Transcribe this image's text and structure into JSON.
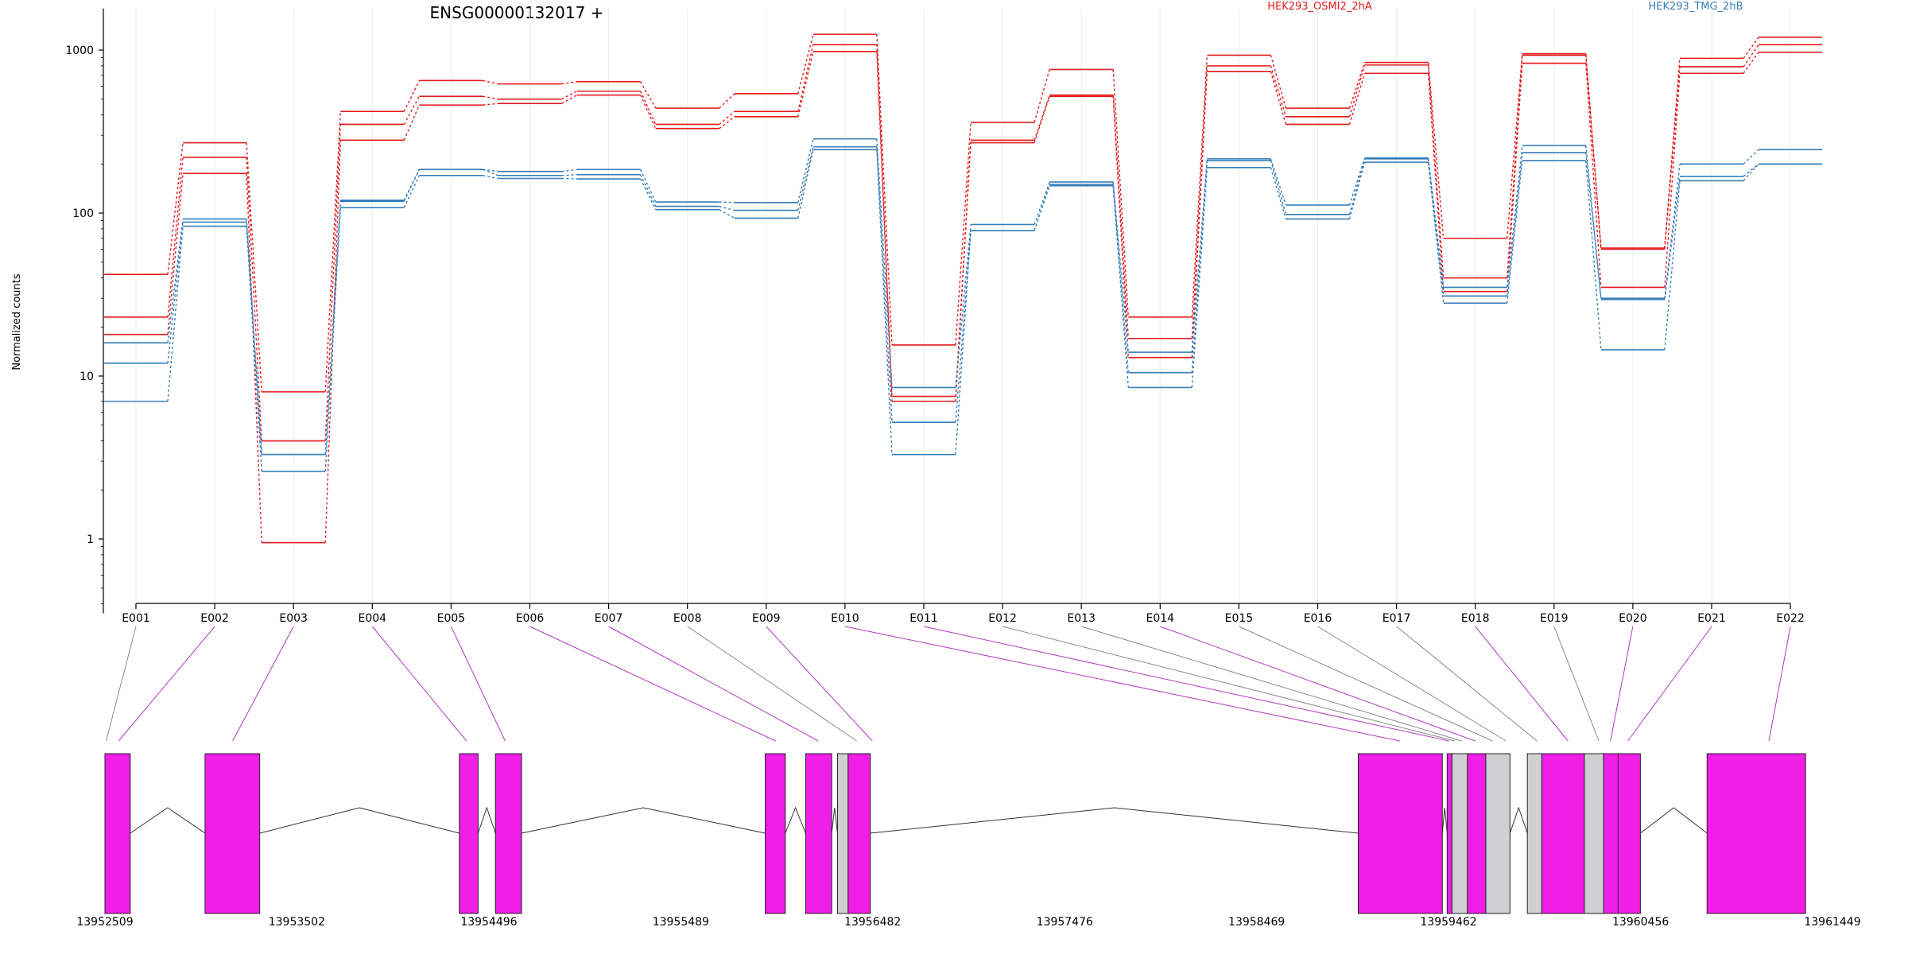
{
  "chart_data": {
    "type": "line",
    "title": "ENSG00000132017 +",
    "xlabel": "",
    "ylabel": "Normalized counts",
    "yscale": "log",
    "ylim": [
      0.35,
      1800
    ],
    "y_ticks": [
      1,
      10,
      100,
      1000
    ],
    "y_tick_labels": [
      "1",
      "10",
      "100",
      "1000"
    ],
    "grid": "vertical",
    "legend_placement": "top",
    "categories": [
      "E001",
      "E002",
      "E003",
      "E004",
      "E005",
      "E006",
      "E007",
      "E008",
      "E009",
      "E010",
      "E011",
      "E012",
      "E013",
      "E014",
      "E015",
      "E016",
      "E017",
      "E018",
      "E019",
      "E020",
      "E021",
      "E022"
    ],
    "conditions": [
      {
        "name": "HEK293_OSMI2_2hA",
        "color": "#e41a1c"
      },
      {
        "name": "HEK293_TMG_2hB",
        "color": "#377eb8"
      }
    ],
    "series": [
      {
        "condition": 0,
        "values": [
          42,
          270,
          8,
          420,
          650,
          620,
          640,
          440,
          540,
          1250,
          15.5,
          360,
          760,
          23,
          930,
          440,
          840,
          70,
          950,
          61,
          890,
          1200
        ]
      },
      {
        "condition": 0,
        "values": [
          23,
          220,
          4,
          350,
          520,
          500,
          560,
          350,
          420,
          1080,
          7.5,
          280,
          530,
          17,
          800,
          390,
          810,
          40,
          930,
          60,
          790,
          1080
        ]
      },
      {
        "condition": 0,
        "values": [
          18,
          175,
          0.95,
          280,
          460,
          470,
          530,
          330,
          390,
          980,
          7,
          270,
          520,
          13,
          740,
          350,
          720,
          33,
          830,
          35,
          720,
          970
        ]
      },
      {
        "condition": 1,
        "values": [
          16,
          92,
          3.3,
          120,
          185,
          180,
          185,
          117,
          116,
          285,
          8.5,
          85,
          155,
          14,
          215,
          112,
          218,
          35,
          260,
          30,
          200,
          245
        ]
      },
      {
        "condition": 1,
        "values": [
          12,
          88,
          3.3,
          118,
          185,
          170,
          172,
          110,
          104,
          255,
          5.2,
          78,
          150,
          10.5,
          210,
          98,
          215,
          31,
          235,
          29.5,
          168,
          200
        ]
      },
      {
        "condition": 1,
        "values": [
          7,
          83,
          2.6,
          108,
          170,
          163,
          162,
          105,
          93,
          245,
          3.3,
          78,
          147,
          8.5,
          190,
          92,
          205,
          28,
          210,
          14.5,
          158,
          200
        ]
      }
    ],
    "genomic_ticks": [
      "13952509",
      "13953502",
      "13954496",
      "13955489",
      "13956482",
      "13957476",
      "13958469",
      "13959462",
      "13960456",
      "13961449"
    ],
    "exon_structure": {
      "exon_colors": {
        "tested": "#f01ee6",
        "other": "#d0cfd2"
      },
      "exons": [
        {
          "feature": "E001",
          "start": 13952509,
          "end": 13952640,
          "tested": true
        },
        {
          "feature": "E002",
          "start": 13953027,
          "end": 13953310,
          "tested": true
        },
        {
          "feature": "E003",
          "start": 13954343,
          "end": 13954440,
          "tested": true
        },
        {
          "feature": "E004",
          "start": 13954530,
          "end": 13954665,
          "tested": true
        },
        {
          "feature": "E005",
          "start": 13955926,
          "end": 13956030,
          "tested": true
        },
        {
          "feature": "E006",
          "start": 13956135,
          "end": 13956270,
          "tested": true
        },
        {
          "feature": "E007",
          "start": 13956300,
          "end": 13956355,
          "tested": false
        },
        {
          "feature": "E008",
          "start": 13956355,
          "end": 13956470,
          "tested": true
        },
        {
          "feature": "E009",
          "start": 13958995,
          "end": 13959430,
          "tested": true
        },
        {
          "feature": "E010",
          "start": 13959455,
          "end": 13959480,
          "tested": true
        },
        {
          "feature": "E011",
          "start": 13959480,
          "end": 13959560,
          "tested": false
        },
        {
          "feature": "E012",
          "start": 13959560,
          "end": 13959655,
          "tested": true
        },
        {
          "feature": "E013",
          "start": 13959655,
          "end": 13959780,
          "tested": false
        },
        {
          "feature": "E014",
          "start": 13959870,
          "end": 13959945,
          "tested": false
        },
        {
          "feature": "E015",
          "start": 13959945,
          "end": 13960165,
          "tested": true
        },
        {
          "feature": "E016",
          "start": 13960165,
          "end": 13960265,
          "tested": false
        },
        {
          "feature": "E017",
          "start": 13960265,
          "end": 13960340,
          "tested": true
        },
        {
          "feature": "E018",
          "start": 13960340,
          "end": 13960455,
          "tested": true
        },
        {
          "feature": "E019",
          "start": 13960800,
          "end": 13961310,
          "tested": true
        }
      ],
      "connectors": [
        {
          "feature": "E001",
          "pos": 13952515,
          "tested": false
        },
        {
          "feature": "E002",
          "pos": 13952580,
          "tested": true
        },
        {
          "feature": "E003",
          "pos": 13953170,
          "tested": true
        },
        {
          "feature": "E004",
          "pos": 13954380,
          "tested": true
        },
        {
          "feature": "E005",
          "pos": 13954580,
          "tested": true
        },
        {
          "feature": "E006",
          "pos": 13955980,
          "tested": true
        },
        {
          "feature": "E007",
          "pos": 13956200,
          "tested": true
        },
        {
          "feature": "E008",
          "pos": 13956400,
          "tested": false
        },
        {
          "feature": "E009",
          "pos": 13956480,
          "tested": true
        },
        {
          "feature": "E010",
          "pos": 13959210,
          "tested": true
        },
        {
          "feature": "E011",
          "pos": 13959465,
          "tested": true
        },
        {
          "feature": "E012",
          "pos": 13959495,
          "tested": false
        },
        {
          "feature": "E013",
          "pos": 13959530,
          "tested": false
        },
        {
          "feature": "E014",
          "pos": 13959600,
          "tested": true
        },
        {
          "feature": "E015",
          "pos": 13959690,
          "tested": false
        },
        {
          "feature": "E016",
          "pos": 13959760,
          "tested": false
        },
        {
          "feature": "E017",
          "pos": 13959920,
          "tested": false
        },
        {
          "feature": "E018",
          "pos": 13960080,
          "tested": true
        },
        {
          "feature": "E019",
          "pos": 13960240,
          "tested": false
        },
        {
          "feature": "E020",
          "pos": 13960300,
          "tested": true
        },
        {
          "feature": "E021",
          "pos": 13960390,
          "tested": true
        },
        {
          "feature": "E022",
          "pos": 13961120,
          "tested": true
        }
      ]
    }
  }
}
